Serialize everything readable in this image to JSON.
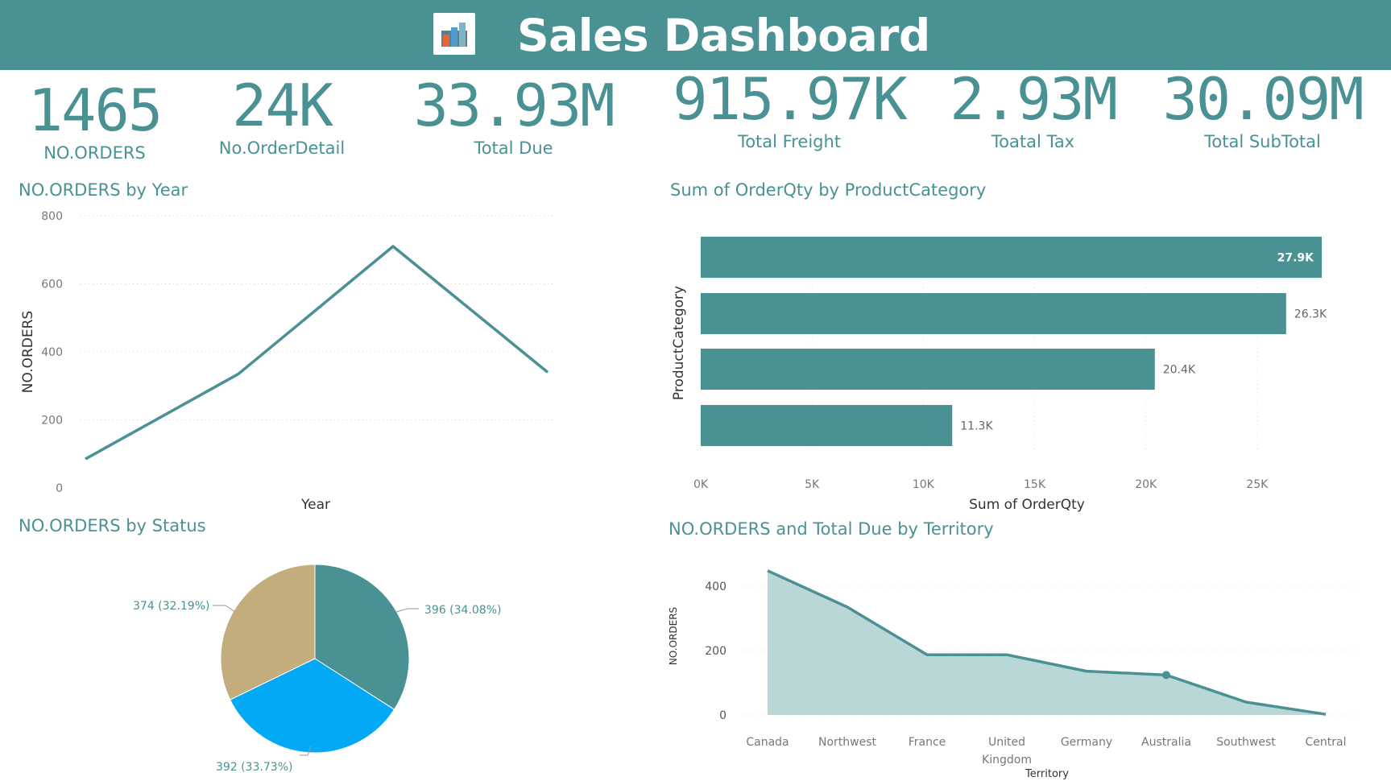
{
  "header": {
    "title": "Sales Dashboard",
    "logo_icon": "bar-chart-icon"
  },
  "kpis": [
    {
      "value": "1465",
      "label": "NO.ORDERS"
    },
    {
      "value": "24K",
      "label": "No.OrderDetail"
    },
    {
      "value": "33.93M",
      "label": "Total Due"
    },
    {
      "value": "915.97K",
      "label": "Total Freight"
    },
    {
      "value": "2.93M",
      "label": "Toatal Tax"
    },
    {
      "value": "30.09M",
      "label": "Total SubTotal"
    }
  ],
  "colors": {
    "teal": "#4a9194",
    "tan": "#c4ad7c",
    "blue": "#03a9f4",
    "area_fill": "#b6d5d6"
  },
  "chart_data": [
    {
      "type": "line",
      "title": "NO.ORDERS by Year",
      "xlabel": "Year",
      "ylabel": "NO.ORDERS",
      "ylim": [
        0,
        800
      ],
      "yticks": [
        "800",
        "600",
        "400",
        "200",
        "0"
      ],
      "values": [
        85,
        335,
        710,
        340
      ],
      "grid": true
    },
    {
      "type": "bar",
      "orientation": "horizontal",
      "title": "Sum of OrderQty by ProductCategory",
      "xlabel": "Sum of OrderQty",
      "ylabel": "ProductCategory",
      "xlim": [
        0,
        27900
      ],
      "xticks": [
        "0K",
        "5K",
        "10K",
        "15K",
        "20K",
        "25K"
      ],
      "values": [
        27900,
        26300,
        20400,
        11300
      ],
      "data_labels": [
        "27.9K",
        "26.3K",
        "20.4K",
        "11.3K"
      ],
      "grid": true
    },
    {
      "type": "pie",
      "title": "NO.ORDERS by Status",
      "values": [
        396,
        392,
        374
      ],
      "data_labels": [
        "396 (34.08%)",
        "392 (33.73%)",
        "374 (32.19%)"
      ]
    },
    {
      "type": "area",
      "title": "NO.ORDERS and Total Due by Territory",
      "xlabel": "Territory",
      "ylabel": "NO.ORDERS",
      "ylim": [
        0,
        440
      ],
      "yticks": [
        "400",
        "200",
        "0"
      ],
      "categories": [
        "Canada",
        "Northwest",
        "France",
        "United Kingdom",
        "Germany",
        "Australia",
        "Southwest",
        "Central"
      ],
      "values": [
        448,
        335,
        187,
        187,
        136,
        124,
        40,
        2
      ],
      "grid": true
    }
  ]
}
